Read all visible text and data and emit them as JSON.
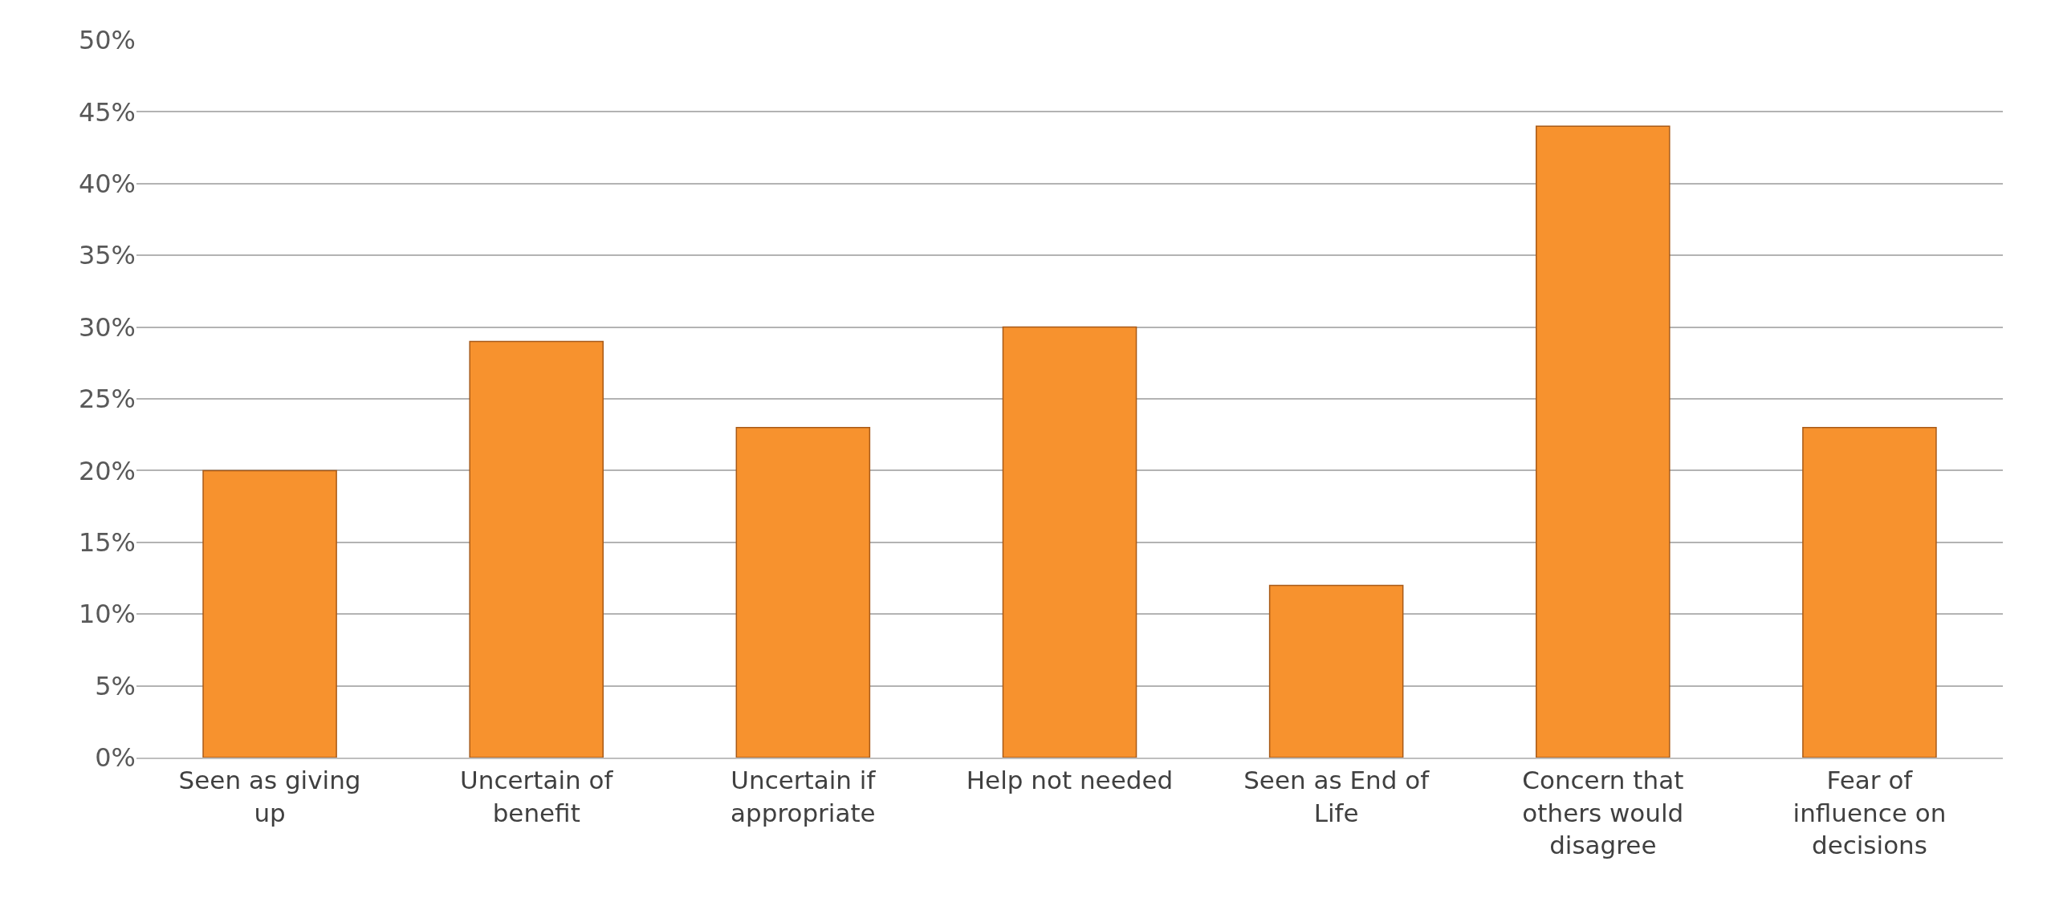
{
  "chart_data": {
    "type": "bar",
    "categories": [
      "Seen as giving up",
      "Uncertain of benefit",
      "Uncertain if appropriate",
      "Help not needed",
      "Seen as End of Life",
      "Concern that others would disagree",
      "Fear of influence on decisions"
    ],
    "values": [
      20,
      29,
      23,
      30,
      12,
      44,
      23
    ],
    "color": "#f7922e",
    "ylim": [
      0,
      50
    ],
    "yticks": [
      {
        "value": 0,
        "label": "0%"
      },
      {
        "value": 5,
        "label": "5%"
      },
      {
        "value": 10,
        "label": "10%"
      },
      {
        "value": 15,
        "label": "15%"
      },
      {
        "value": 20,
        "label": "20%"
      },
      {
        "value": 25,
        "label": "25%"
      },
      {
        "value": 30,
        "label": "30%"
      },
      {
        "value": 35,
        "label": "35%"
      },
      {
        "value": 40,
        "label": "40%"
      },
      {
        "value": 45,
        "label": "45%"
      },
      {
        "value": 50,
        "label": "50%"
      }
    ],
    "grid": "y"
  }
}
